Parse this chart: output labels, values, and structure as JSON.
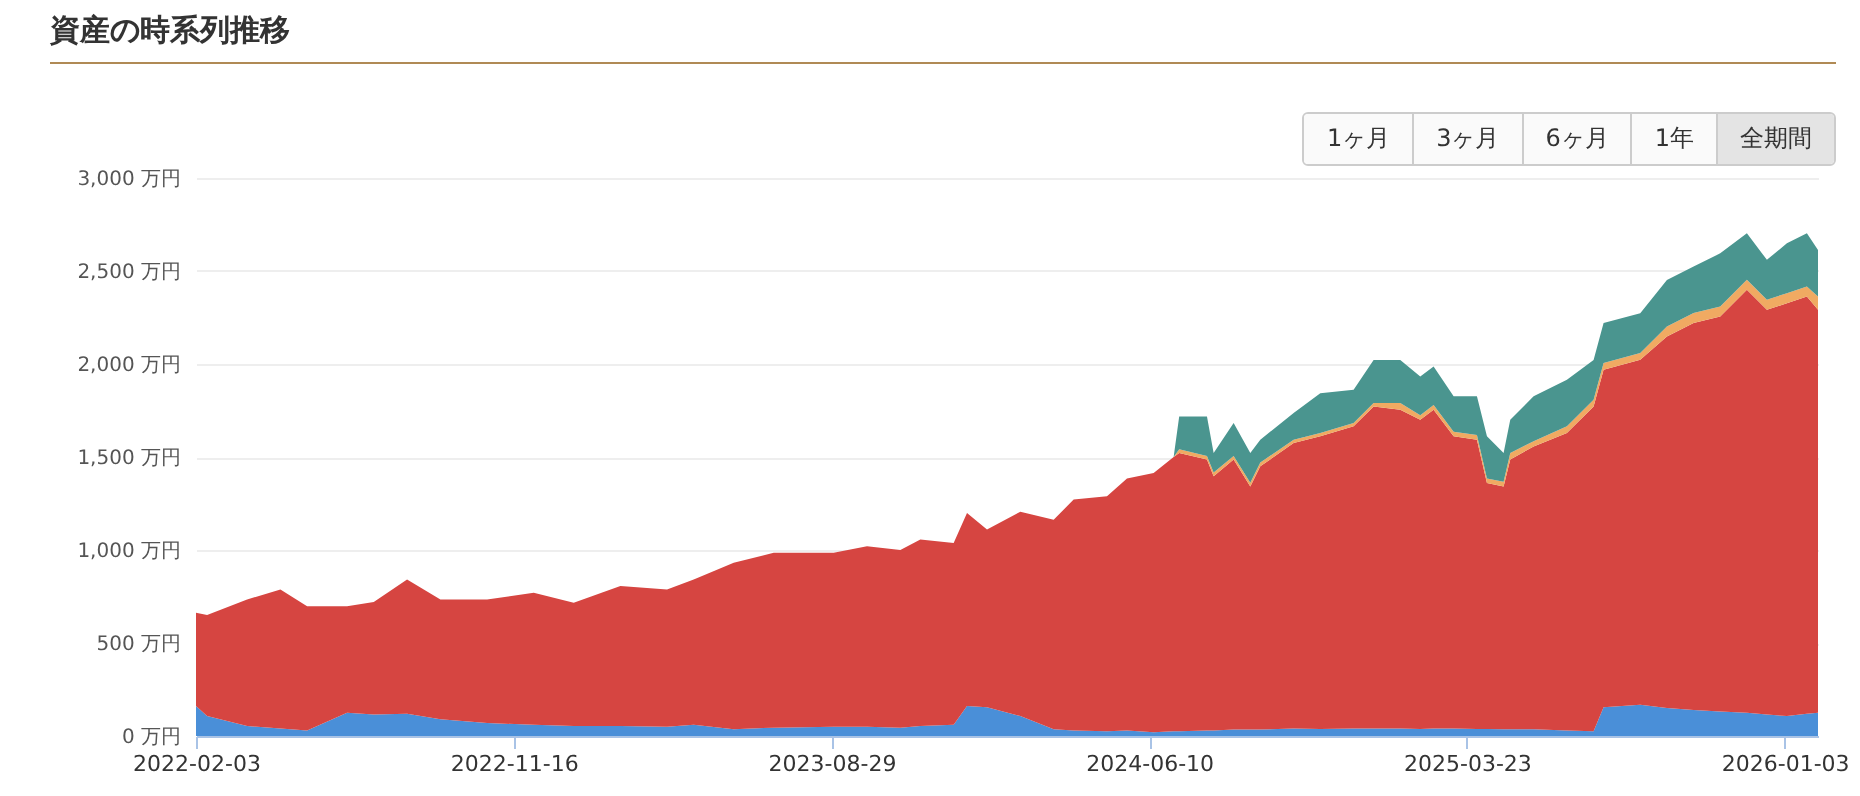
{
  "chart_data": {
    "type": "area",
    "title": "資産の時系列推移",
    "annotations": [
      "1ヶ月",
      "3ヶ月",
      "6ヶ月",
      "1年",
      "全期間"
    ],
    "stacked": true,
    "grid": "y",
    "legend": false,
    "x": [
      "2022-02-03",
      "2022-02-13",
      "2022-03-21",
      "2022-04-20",
      "2022-05-14",
      "2022-06-19",
      "2022-07-13",
      "2022-08-12",
      "2022-09-11",
      "2022-10-23",
      "2022-12-04",
      "2023-01-09",
      "2023-02-20",
      "2023-04-03",
      "2023-04-27",
      "2023-06-02",
      "2023-07-08",
      "2023-08-31",
      "2023-09-30",
      "2023-10-30",
      "2023-11-17",
      "2023-12-17",
      "2023-12-29",
      "2024-01-16",
      "2024-02-15",
      "2024-03-16",
      "2024-04-03",
      "2024-05-03",
      "2024-05-21",
      "2024-06-14",
      "2024-07-02",
      "2024-07-07",
      "2024-08-01",
      "2024-08-07",
      "2024-08-25",
      "2024-09-09",
      "2024-09-18",
      "2024-10-18",
      "2024-11-11",
      "2024-12-11",
      "2024-12-29",
      "2025-01-22",
      "2025-02-09",
      "2025-02-21",
      "2025-03-11",
      "2025-04-01",
      "2025-04-10",
      "2025-04-25",
      "2025-05-01",
      "2025-05-22",
      "2025-06-21",
      "2025-07-15",
      "2025-07-24",
      "2025-08-26",
      "2025-09-19",
      "2025-10-13",
      "2025-11-06",
      "2025-11-30",
      "2025-12-18",
      "2026-01-05",
      "2026-01-23",
      "2026-02-02"
    ],
    "series": [
      {
        "color": "#4a8fd8",
        "values": [
          161,
          107,
          54,
          40,
          30,
          125,
          115,
          120,
          90,
          70,
          60,
          54,
          54,
          50,
          60,
          36,
          45,
          50,
          50,
          45,
          54,
          60,
          161,
          154,
          107,
          36,
          30,
          25,
          30,
          20,
          25,
          25,
          30,
          30,
          35,
          35,
          35,
          40,
          38,
          40,
          40,
          40,
          38,
          40,
          40,
          38,
          38,
          36,
          36,
          36,
          30,
          25,
          154,
          168,
          150,
          140,
          132,
          125,
          115,
          107,
          120,
          125
        ]
      },
      {
        "color": "#d64541",
        "values": [
          501,
          543,
          680,
          748,
          668,
          573,
          605,
          721,
          644,
          664,
          710,
          662,
          752,
          738,
          781,
          895,
          940,
          935,
          970,
          955,
          1002,
          978,
          1038,
          956,
          1099,
          1127,
          1241,
          1264,
          1355,
          1394,
          1475,
          1496,
          1456,
          1366,
          1451,
          1307,
          1415,
          1535,
          1573,
          1625,
          1732,
          1714,
          1662,
          1714,
          1571,
          1555,
          1322,
          1306,
          1450,
          1521,
          1599,
          1747,
          1815,
          1855,
          1998,
          2080,
          2123,
          2274,
          2176,
          2220,
          2243,
          2166
        ]
      },
      {
        "color": "#f0aa62",
        "values": [
          0,
          0,
          0,
          0,
          0,
          0,
          0,
          0,
          0,
          0,
          0,
          0,
          0,
          0,
          0,
          0,
          0,
          0,
          0,
          0,
          0,
          0,
          0,
          0,
          0,
          0,
          0,
          0,
          0,
          0,
          0,
          20,
          20,
          20,
          20,
          20,
          20,
          18,
          18,
          18,
          18,
          36,
          25,
          25,
          25,
          25,
          25,
          25,
          36,
          28,
          36,
          36,
          36,
          36,
          54,
          54,
          54,
          54,
          54,
          54,
          54,
          72
        ]
      },
      {
        "color": "#4a958f",
        "values": [
          0,
          0,
          0,
          0,
          0,
          0,
          0,
          0,
          0,
          0,
          0,
          0,
          0,
          0,
          0,
          0,
          0,
          0,
          0,
          0,
          0,
          0,
          0,
          0,
          0,
          0,
          0,
          0,
          0,
          0,
          0,
          177,
          212,
          105,
          177,
          159,
          123,
          143,
          214,
          179,
          232,
          232,
          208,
          208,
          190,
          208,
          226,
          154,
          178,
          241,
          250,
          214,
          215,
          214,
          250,
          250,
          286,
          250,
          215,
          268,
          286,
          250
        ]
      }
    ],
    "xlim": [
      "2022-02-03",
      "2026-02-02"
    ],
    "xticks": [
      "2022-02-03",
      "2022-11-16",
      "2023-08-29",
      "2024-06-10",
      "2025-03-23",
      "2026-01-03"
    ],
    "ylim": [
      0,
      3000
    ],
    "yticks": [
      {
        "value": 0,
        "label": "0 万円"
      },
      {
        "value": 500,
        "label": "500 万円"
      },
      {
        "value": 1000,
        "label": "1,000 万円"
      },
      {
        "value": 1500,
        "label": "1,500 万円"
      },
      {
        "value": 2000,
        "label": "2,000 万円"
      },
      {
        "value": 2500,
        "label": "2,500 万円"
      },
      {
        "value": 3000,
        "label": "3,000 万円"
      }
    ]
  }
}
